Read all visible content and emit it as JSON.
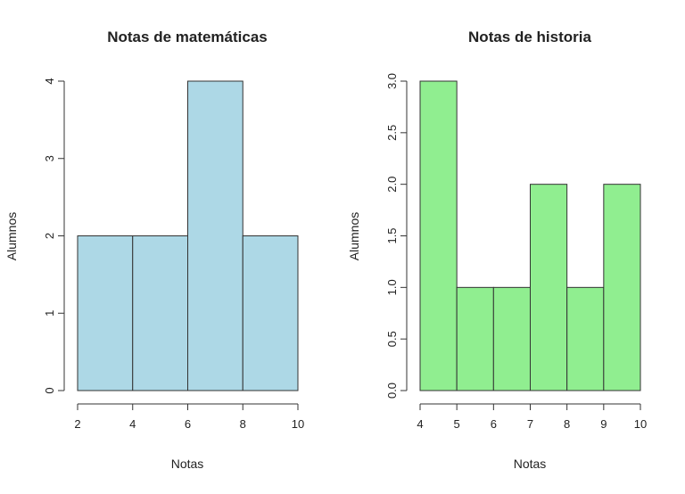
{
  "chart_data": [
    {
      "type": "bar",
      "title": "Notas de matemáticas",
      "xlabel": "Notas",
      "ylabel": "Alumnos",
      "bin_edges": [
        2,
        4,
        6,
        8,
        10
      ],
      "values": [
        2,
        2,
        4,
        2
      ],
      "xlim": [
        2,
        10
      ],
      "ylim": [
        0,
        4
      ],
      "x_ticks": [
        "2",
        "4",
        "6",
        "8",
        "10"
      ],
      "y_ticks": [
        "0",
        "1",
        "2",
        "3",
        "4"
      ],
      "fill_color": "#add8e6",
      "grid": false
    },
    {
      "type": "bar",
      "title": "Notas de historia",
      "xlabel": "Notas",
      "ylabel": "Alumnos",
      "bin_edges": [
        4,
        5,
        6,
        7,
        8,
        9,
        10
      ],
      "values": [
        3,
        1,
        1,
        2,
        1,
        2
      ],
      "xlim": [
        4,
        10
      ],
      "ylim": [
        0,
        3
      ],
      "x_ticks": [
        "4",
        "5",
        "6",
        "7",
        "8",
        "9",
        "10"
      ],
      "y_ticks": [
        "0.0",
        "0.5",
        "1.0",
        "1.5",
        "2.0",
        "2.5",
        "3.0"
      ],
      "fill_color": "#90ee90",
      "grid": false
    }
  ]
}
